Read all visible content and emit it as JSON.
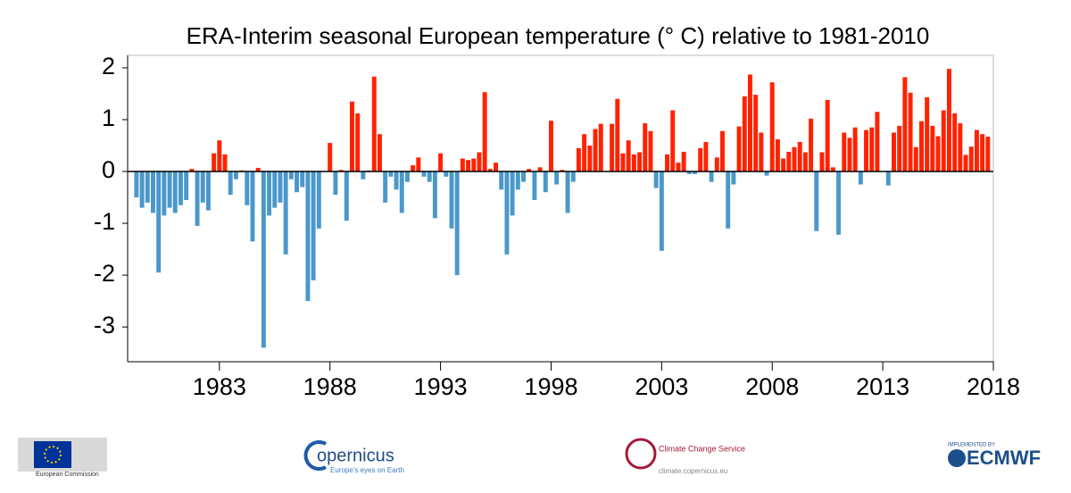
{
  "chart_data": {
    "type": "bar",
    "title": "ERA-Interim seasonal European temperature (° C) relative to 1981-2010",
    "positive_color": "#ff2200",
    "negative_color": "#4a98cb",
    "xlim": [
      1978.85,
      2018.0
    ],
    "ylim": [
      -3.67,
      2.24
    ],
    "xticks": [
      1983,
      1988,
      1993,
      1998,
      2003,
      2008,
      2013,
      2018
    ],
    "yticks": [
      -3,
      -2,
      -1,
      0,
      1,
      2
    ],
    "x": [
      1979.25,
      1979.5,
      1979.75,
      1980,
      1980.25,
      1980.5,
      1980.75,
      1981,
      1981.25,
      1981.5,
      1981.75,
      1982,
      1982.25,
      1982.5,
      1982.75,
      1983,
      1983.25,
      1983.5,
      1983.75,
      1984,
      1984.25,
      1984.5,
      1984.75,
      1985,
      1985.25,
      1985.5,
      1985.75,
      1986,
      1986.25,
      1986.5,
      1986.75,
      1987,
      1987.25,
      1987.5,
      1987.75,
      1988,
      1988.25,
      1988.5,
      1988.75,
      1989,
      1989.25,
      1989.5,
      1989.75,
      1990,
      1990.25,
      1990.5,
      1990.75,
      1991,
      1991.25,
      1991.5,
      1991.75,
      1992,
      1992.25,
      1992.5,
      1992.75,
      1993,
      1993.25,
      1993.5,
      1993.75,
      1994,
      1994.25,
      1994.5,
      1994.75,
      1995,
      1995.25,
      1995.5,
      1995.75,
      1996,
      1996.25,
      1996.5,
      1996.75,
      1997,
      1997.25,
      1997.5,
      1997.75,
      1998,
      1998.25,
      1998.5,
      1998.75,
      1999,
      1999.25,
      1999.5,
      1999.75,
      2000,
      2000.25,
      2000.5,
      2000.75,
      2001,
      2001.25,
      2001.5,
      2001.75,
      2002,
      2002.25,
      2002.5,
      2002.75,
      2003,
      2003.25,
      2003.5,
      2003.75,
      2004,
      2004.25,
      2004.5,
      2004.75,
      2005,
      2005.25,
      2005.5,
      2005.75,
      2006,
      2006.25,
      2006.5,
      2006.75,
      2007,
      2007.25,
      2007.5,
      2007.75,
      2008,
      2008.25,
      2008.5,
      2008.75,
      2009,
      2009.25,
      2009.5,
      2009.75,
      2010,
      2010.25,
      2010.5,
      2010.75,
      2011,
      2011.25,
      2011.5,
      2011.75,
      2012,
      2012.25,
      2012.5,
      2012.75,
      2013,
      2013.25,
      2013.5,
      2013.75,
      2014,
      2014.25,
      2014.5,
      2014.75,
      2015,
      2015.25,
      2015.5,
      2015.75,
      2016,
      2016.25,
      2016.5,
      2016.75,
      2017,
      2017.25,
      2017.5,
      2017.75
    ],
    "values": [
      -0.5,
      -0.7,
      -0.6,
      -0.8,
      -1.95,
      -0.85,
      -0.7,
      -0.8,
      -0.65,
      -0.55,
      0.05,
      -1.05,
      -0.6,
      -0.75,
      0.35,
      0.6,
      0.33,
      -0.45,
      -0.15,
      0.02,
      -0.65,
      -1.35,
      0.07,
      -3.4,
      -0.85,
      -0.7,
      -0.6,
      -1.6,
      -0.15,
      -0.4,
      -0.3,
      -2.5,
      -2.1,
      -1.1,
      0,
      0.55,
      -0.45,
      0.03,
      -0.95,
      1.35,
      1.12,
      -0.15,
      0.02,
      1.83,
      0.72,
      -0.6,
      -0.1,
      -0.35,
      -0.8,
      -0.2,
      0.12,
      0.27,
      -0.1,
      -0.2,
      -0.9,
      0.35,
      -0.1,
      -1.1,
      -2.0,
      0.25,
      0.22,
      0.25,
      0.37,
      1.53,
      0.05,
      0.17,
      -0.35,
      -1.6,
      -0.85,
      -0.35,
      -0.2,
      0.05,
      -0.55,
      0.08,
      -0.4,
      0.98,
      -0.25,
      0.03,
      -0.8,
      -0.2,
      0.45,
      0.72,
      0.5,
      0.82,
      0.92,
      0,
      0.92,
      1.4,
      0.35,
      0.6,
      0.33,
      0.37,
      0.93,
      0.78,
      -0.32,
      -1.53,
      0.33,
      1.18,
      0.17,
      0.38,
      -0.05,
      -0.05,
      0.45,
      0.57,
      -0.2,
      0.27,
      0.78,
      -1.1,
      -0.25,
      0.87,
      1.45,
      1.87,
      1.48,
      0.75,
      -0.08,
      1.72,
      0.62,
      0.25,
      0.38,
      0.47,
      0.57,
      0.37,
      1.02,
      -1.15,
      0.37,
      1.38,
      0.08,
      -1.22,
      0.75,
      0.65,
      0.85,
      -0.25,
      0.8,
      0.85,
      1.15,
      0,
      -0.27,
      0.75,
      0.88,
      1.82,
      1.52,
      0.47,
      0.97,
      1.43,
      0.88,
      0.68,
      1.18,
      1.98,
      1.12,
      0.93,
      0.32,
      0.48,
      0.8,
      0.72,
      0.67
    ]
  },
  "logos": {
    "ec": "European Commission",
    "copernicus": "opernicus",
    "copernicus_tagline": "Europe's eyes on Earth",
    "c3s": "Climate Change Service",
    "c3s_url": "climate.copernicus.eu",
    "ecmwf_note": "IMPLEMENTED BY",
    "ecmwf": "ECMWF"
  }
}
